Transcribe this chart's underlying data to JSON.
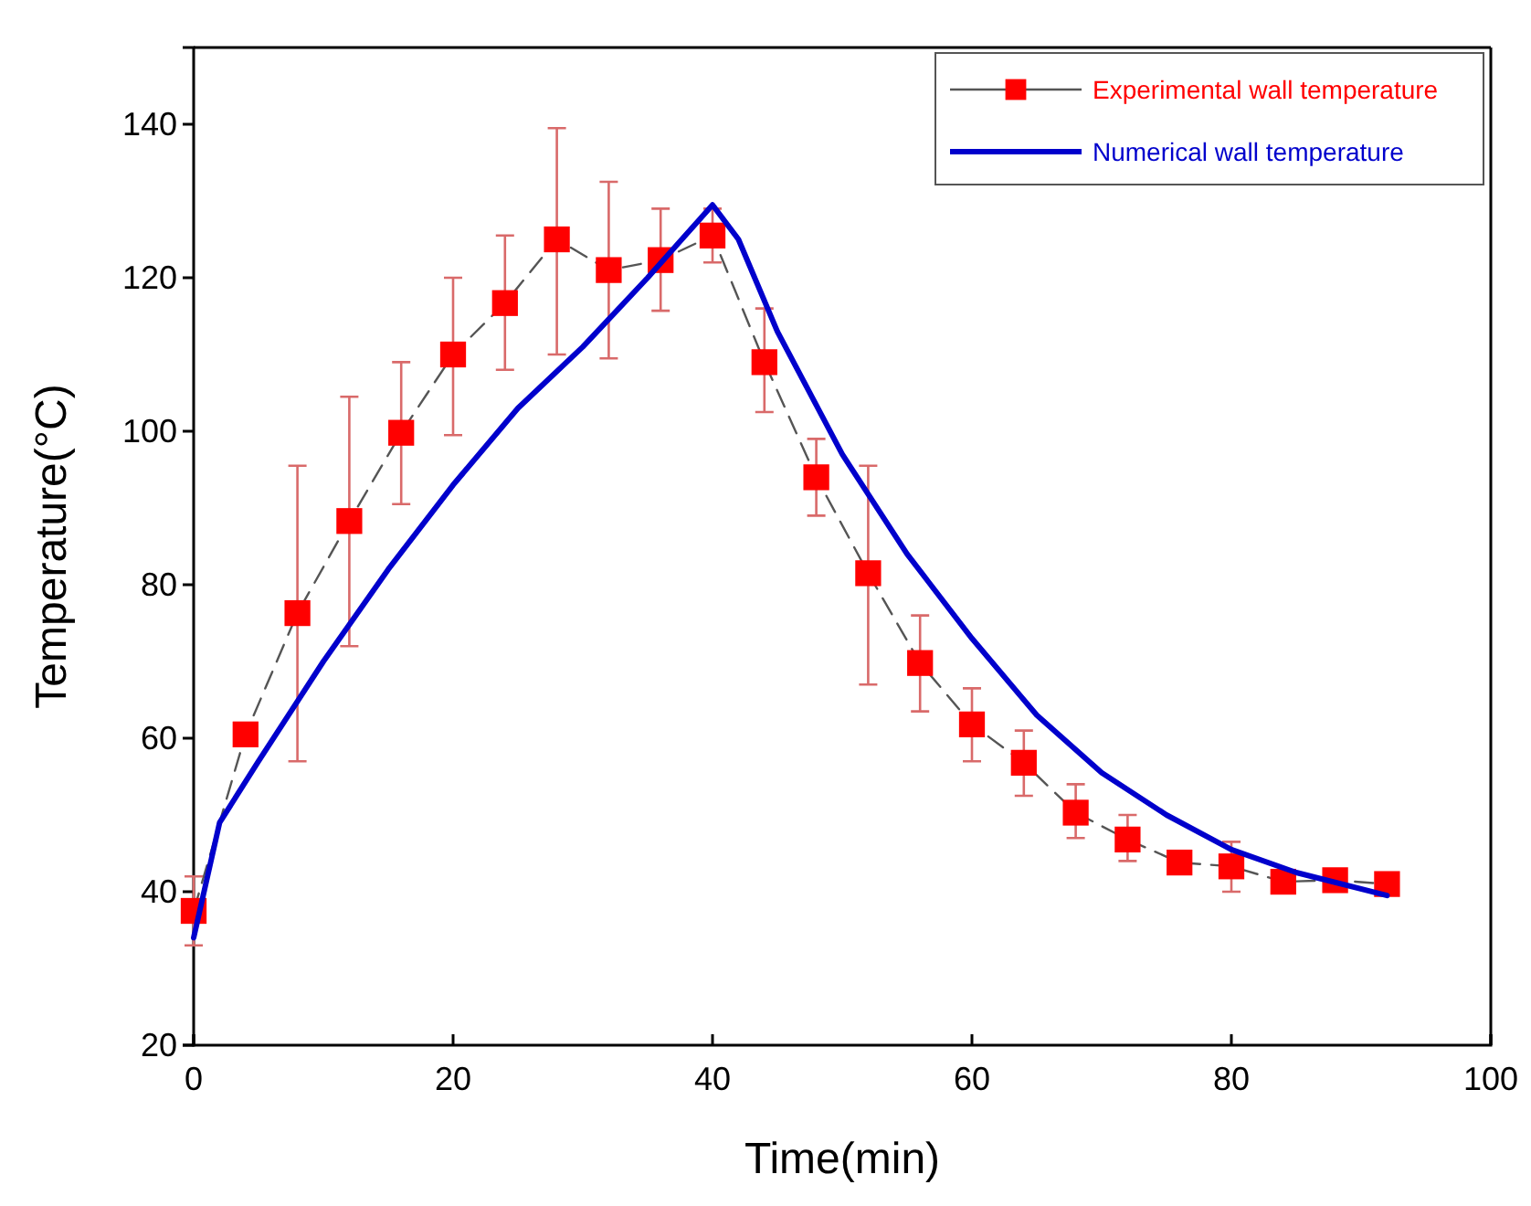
{
  "chart_data": {
    "type": "line",
    "xlabel": "Time(min)",
    "ylabel": "Temperature(°C)",
    "xlim": [
      0,
      100
    ],
    "ylim": [
      20,
      150
    ],
    "xticks": [
      0,
      20,
      40,
      60,
      80,
      100
    ],
    "yticks": [
      20,
      40,
      60,
      80,
      100,
      120,
      140
    ],
    "grid": false,
    "legend": "top right",
    "series": [
      {
        "name": "Experimental wall temperature",
        "color": "#ff0000",
        "marker": "square",
        "line_style": "dashed",
        "x": [
          0,
          4,
          8,
          12,
          16,
          20,
          24,
          28,
          32,
          36,
          40,
          44,
          48,
          52,
          56,
          60,
          64,
          68,
          72,
          76,
          80,
          84,
          88,
          92
        ],
        "values": [
          37.5,
          60.5,
          76.3,
          88.3,
          99.8,
          110,
          116.7,
          125,
          121,
          122.3,
          125.5,
          109,
          94,
          81.5,
          69.8,
          61.8,
          56.8,
          50.3,
          46.8,
          43.8,
          43.3,
          41.3,
          41.5,
          41
        ],
        "errors": [
          [
            33,
            42
          ],
          null,
          [
            57,
            95.5
          ],
          [
            72,
            104.5
          ],
          [
            90.5,
            109
          ],
          [
            99.5,
            120
          ],
          [
            108,
            125.5
          ],
          [
            110,
            139.5
          ],
          [
            109.5,
            132.5
          ],
          [
            115.7,
            129
          ],
          [
            122,
            129
          ],
          [
            102.5,
            116
          ],
          [
            89,
            99
          ],
          [
            67,
            95.5
          ],
          [
            63.5,
            76
          ],
          [
            57,
            66.5
          ],
          [
            52.5,
            61
          ],
          [
            47,
            54
          ],
          [
            44,
            50
          ],
          null,
          [
            40,
            46.5
          ],
          null,
          null,
          null
        ]
      },
      {
        "name": "Numerical wall temperature",
        "color": "#0000cc",
        "marker": "none",
        "line_style": "solid",
        "x": [
          0,
          2,
          5,
          10,
          15,
          20,
          25,
          30,
          35,
          40,
          42,
          45,
          50,
          55,
          60,
          65,
          70,
          75,
          80,
          85,
          92
        ],
        "values": [
          34,
          49,
          57,
          70,
          82,
          93,
          103,
          111,
          120,
          129.5,
          125,
          113,
          97,
          84,
          73,
          63,
          55.5,
          50,
          45.5,
          42.5,
          39.5
        ]
      }
    ]
  }
}
